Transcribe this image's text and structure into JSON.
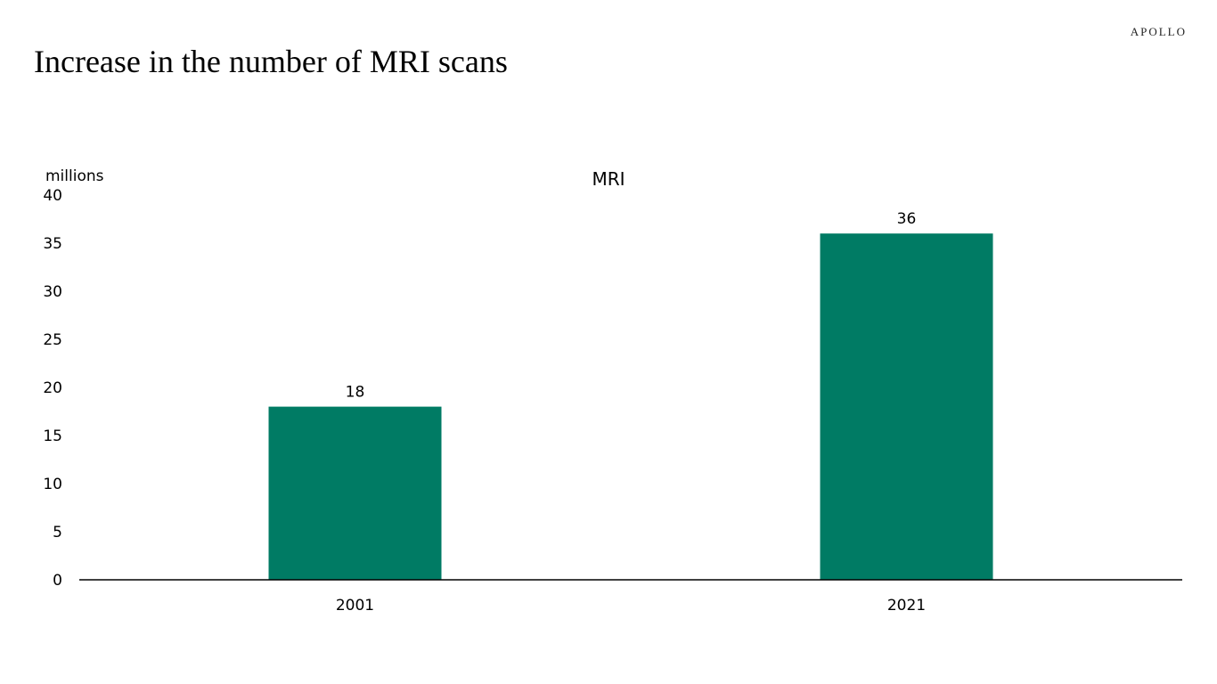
{
  "page": {
    "title": "Increase in the number of MRI scans",
    "brand": "APOLLO"
  },
  "colors": {
    "bar": "#007b64",
    "axis": "#000000",
    "text": "#000000"
  },
  "chart_data": {
    "type": "bar",
    "title": "MRI",
    "ylabel": "millions",
    "xlabel": "",
    "categories": [
      "2001",
      "2021"
    ],
    "values": [
      18,
      36
    ],
    "data_labels": [
      "18",
      "36"
    ],
    "ylim": [
      0,
      40
    ],
    "yticks": [
      0,
      5,
      10,
      15,
      20,
      25,
      30,
      35,
      40
    ],
    "grid": false,
    "legend": "none"
  }
}
